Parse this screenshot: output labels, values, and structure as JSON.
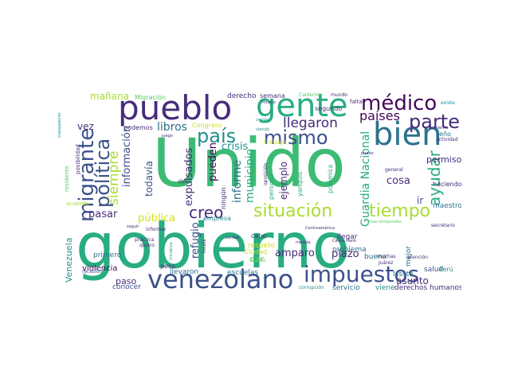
{
  "word_cloud": {
    "colors": {
      "dark_purple": "#44065a",
      "purple": "#472c7a",
      "indigo": "#3b518b",
      "blue": "#2c718e",
      "teal": "#21908d",
      "green": "#27ad81",
      "light_green": "#5cc863",
      "emerald": "#3dbb74",
      "lime": "#aadc32",
      "yellow": "#d2e21b"
    },
    "words": [
      {
        "text": "Unido",
        "color": "#3dbb74"
      },
      {
        "text": "gobierno",
        "color": "#27ad81"
      },
      {
        "text": "pueblo",
        "color": "#472c7a"
      },
      {
        "text": "gente",
        "color": "#27ad81"
      },
      {
        "text": "bien",
        "color": "#2c718e"
      },
      {
        "text": "venezolano",
        "color": "#3b518b"
      },
      {
        "text": "médico",
        "color": "#44065a"
      },
      {
        "text": "migrante",
        "color": "#3b518b"
      },
      {
        "text": "impuestos",
        "color": "#3b518b"
      },
      {
        "text": "política",
        "color": "#3b518b"
      },
      {
        "text": "parte",
        "color": "#472c7a"
      },
      {
        "text": "mismo",
        "color": "#3b518b"
      },
      {
        "text": "país",
        "color": "#21908d"
      },
      {
        "text": "situación",
        "color": "#aadc32"
      },
      {
        "text": "tiempo",
        "color": "#aadc32"
      },
      {
        "text": "ayudar",
        "color": "#27ad81"
      },
      {
        "text": "llegaron",
        "color": "#472c7a"
      },
      {
        "text": "países",
        "color": "#44065a"
      },
      {
        "text": "creo",
        "color": "#472c7a"
      },
      {
        "text": "siempre",
        "color": "#aadc32"
      },
      {
        "text": "Guardia Nacional",
        "color": "#27ad81"
      },
      {
        "text": "información",
        "color": "#3b518b"
      },
      {
        "text": "mañana",
        "color": "#aadc32"
      },
      {
        "text": "libros",
        "color": "#2c718e"
      },
      {
        "text": "municipio",
        "color": "#27ad81"
      },
      {
        "text": "informe",
        "color": "#2c718e"
      },
      {
        "text": "crisis",
        "color": "#21908d"
      },
      {
        "text": "pasar",
        "color": "#472c7a"
      },
      {
        "text": "pública",
        "color": "#d2e21b"
      },
      {
        "text": "pueden",
        "color": "#44065a"
      },
      {
        "text": "todavía",
        "color": "#3b518b"
      },
      {
        "text": "expulsados",
        "color": "#472c7a"
      },
      {
        "text": "refugio",
        "color": "#3b518b"
      },
      {
        "text": "ejemplo",
        "color": "#472c7a"
      },
      {
        "text": "amparo",
        "color": "#472c7a"
      },
      {
        "text": "plazo",
        "color": "#472c7a"
      },
      {
        "text": "asunto",
        "color": "#472c7a"
      },
      {
        "text": "paso",
        "color": "#472c7a"
      },
      {
        "text": "cosa",
        "color": "#472c7a"
      },
      {
        "text": "permiso",
        "color": "#472c7a"
      },
      {
        "text": "vez",
        "color": "#472c7a"
      },
      {
        "text": "ir",
        "color": "#3b518b"
      },
      {
        "text": "Venezuela",
        "color": "#21908d"
      },
      {
        "text": "violencia",
        "color": "#44065a"
      },
      {
        "text": "dar",
        "color": "#5cc863"
      },
      {
        "text": "respeto",
        "color": "#d2e21b"
      },
      {
        "text": "llevaron",
        "color": "#2c718e"
      },
      {
        "text": "escuelas",
        "color": "#2c718e"
      },
      {
        "text": "conocer",
        "color": "#3b518b"
      },
      {
        "text": "primero",
        "color": "#2c718e"
      },
      {
        "text": "Issste",
        "color": "#2c718e"
      },
      {
        "text": "servicio",
        "color": "#2c718e"
      },
      {
        "text": "derechos humanos",
        "color": "#472c7a"
      },
      {
        "text": "viene",
        "color": "#21908d"
      },
      {
        "text": "llegar",
        "color": "#472c7a"
      },
      {
        "text": "buena",
        "color": "#2c718e"
      },
      {
        "text": "problema",
        "color": "#2c718e"
      },
      {
        "text": "salud",
        "color": "#3b518b"
      },
      {
        "text": "mejor",
        "color": "#2c718e"
      },
      {
        "text": "maestro",
        "color": "#2c718e"
      },
      {
        "text": "haciendo",
        "color": "#472c7a"
      },
      {
        "text": "derecho",
        "color": "#472c7a"
      },
      {
        "text": "semana",
        "color": "#472c7a"
      },
      {
        "text": "Migración",
        "color": "#5cc863"
      },
      {
        "text": "podemos",
        "color": "#472c7a"
      },
      {
        "text": "Congreso",
        "color": "#d2e21b"
      },
      {
        "text": "trabajo",
        "color": "#d2e21b"
      },
      {
        "text": "empresa",
        "color": "#21908d"
      },
      {
        "text": "ningún",
        "color": "#472c7a"
      },
      {
        "text": "persona",
        "color": "#27ad81"
      },
      {
        "text": "cabo",
        "color": "#472c7a"
      },
      {
        "text": "peso",
        "color": "#472c7a"
      },
      {
        "text": "Ciudad",
        "color": "#d2e21b"
      },
      {
        "text": "polémica",
        "color": "#27ad81"
      },
      {
        "text": "yanquis",
        "color": "#27ad81"
      },
      {
        "text": "segundo",
        "color": "#472c7a"
      },
      {
        "text": "seño",
        "color": "#2c718e"
      },
      {
        "text": "acuerdo",
        "color": "#aadc32"
      },
      {
        "text": "residente",
        "color": "#5cc863"
      },
      {
        "text": "posibilidad",
        "color": "#472c7a"
      },
      {
        "text": "falta",
        "color": "#472c7a"
      },
      {
        "text": "Calderón",
        "color": "#5cc863"
      },
      {
        "text": "mundo",
        "color": "#472c7a"
      },
      {
        "text": "existe",
        "color": "#21908d"
      },
      {
        "text": "actividad",
        "color": "#472c7a"
      },
      {
        "text": "general",
        "color": "#472c7a"
      },
      {
        "text": "atención",
        "color": "#472c7a"
      },
      {
        "text": "Perú",
        "color": "#21908d"
      },
      {
        "text": "muchas",
        "color": "#472c7a"
      },
      {
        "text": "Juárez",
        "color": "#472c7a"
      },
      {
        "text": "recesión",
        "color": "#3b518b"
      },
      {
        "text": "práctica",
        "color": "#472c7a"
      },
      {
        "text": "quiero",
        "color": "#472c7a"
      },
      {
        "text": "hecho",
        "color": "#5cc863"
      },
      {
        "text": "corrupción",
        "color": "#21908d"
      },
      {
        "text": "informar",
        "color": "#472c7a"
      },
      {
        "text": "dijo",
        "color": "#472c7a"
      },
      {
        "text": "vemos",
        "color": "#21908d"
      },
      {
        "text": "seguir",
        "color": "#472c7a"
      },
      {
        "text": "puedo",
        "color": "#472c7a"
      },
      {
        "text": "viendo",
        "color": "#21908d"
      },
      {
        "text": "secretario",
        "color": "#472c7a"
      },
      {
        "text": "Centroamérica",
        "color": "#472c7a"
      },
      {
        "text": "Carlos Hank",
        "color": "#472c7a"
      },
      {
        "text": "medida",
        "color": "#472c7a"
      },
      {
        "text": "crecimiento",
        "color": "#472c7a"
      },
      {
        "text": "trabajadores",
        "color": "#21908d"
      },
      {
        "text": "oposición",
        "color": "#472c7a"
      },
      {
        "text": "juego",
        "color": "#472c7a"
      },
      {
        "text": "verdad",
        "color": "#472c7a"
      },
      {
        "text": "fiscalía",
        "color": "#472c7a"
      },
      {
        "text": "mismo",
        "color": "#472c7a"
      },
      {
        "text": "iniciativa",
        "color": "#21908d"
      },
      {
        "text": "visas temporales",
        "color": "#5cc863"
      }
    ]
  }
}
